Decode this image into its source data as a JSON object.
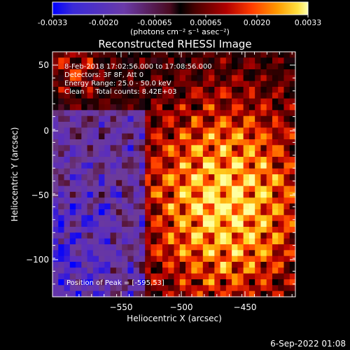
{
  "colorbar": {
    "tick_labels": [
      "-0.0033",
      "-0.0020",
      "-0.00065",
      "0.00065",
      "0.0020",
      "0.0033"
    ],
    "unit_label": "(photons cm⁻² s⁻¹ asec⁻²)"
  },
  "plot": {
    "title": "Reconstructed RHESSI Image",
    "x_axis_label": "Heliocentric X (arcsec)",
    "y_axis_label": "Heliocentric Y (arcsec)",
    "x_ticks": [
      "−550",
      "−500",
      "−450"
    ],
    "y_ticks": [
      "50",
      "0",
      "−50",
      "−100"
    ]
  },
  "annotations": {
    "time_range": "8-Feb-2018 17:02:56.000 to 17:08:56.000",
    "detectors": "Detectors: 3F 8F, Att 0",
    "energy_range": "Energy Range: 25.0 - 50.0 keV",
    "method": "Clean     Total counts: 8.42E+03",
    "peak": "Position of Peak = [-595,53]"
  },
  "footer": {
    "timestamp": "6-Sep-2022 01:08"
  },
  "colors": {
    "background": "#000000",
    "text": "#ffffff",
    "colormap": [
      "#0000ff",
      "#5a2dbe",
      "#6e3c96",
      "#500a1e",
      "#000000",
      "#5a0000",
      "#b40000",
      "#ff3c00",
      "#ff9600",
      "#ffdc28",
      "#ffffa0"
    ]
  }
}
